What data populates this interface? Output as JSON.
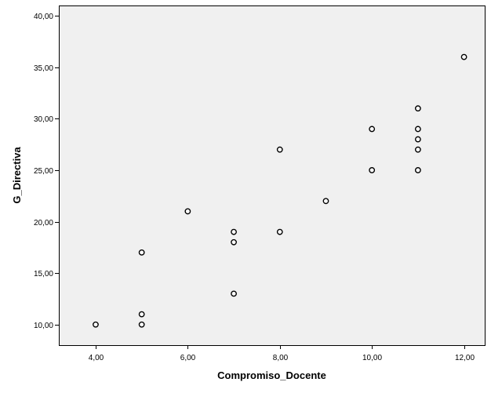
{
  "chart_data": {
    "type": "scatter",
    "title": "",
    "xlabel": "Compromiso_Docente",
    "ylabel": "G_Directiva",
    "xlim": [
      3.2,
      12.45
    ],
    "ylim": [
      8.0,
      41.0
    ],
    "x_ticks": [
      4,
      6,
      8,
      10,
      12
    ],
    "x_tick_labels": [
      "4,00",
      "6,00",
      "8,00",
      "10,00",
      "12,00"
    ],
    "y_ticks": [
      10,
      15,
      20,
      25,
      30,
      35,
      40
    ],
    "y_tick_labels": [
      "10,00",
      "15,00",
      "20,00",
      "25,00",
      "30,00",
      "35,00",
      "40,00"
    ],
    "grid": false,
    "legend": "none",
    "colors": {
      "plot_background": "#f0f0f0",
      "marker_stroke": "#000000",
      "marker_fill": "#ffffff"
    },
    "points": [
      {
        "x": 4,
        "y": 10
      },
      {
        "x": 5,
        "y": 10
      },
      {
        "x": 5,
        "y": 11
      },
      {
        "x": 5,
        "y": 17
      },
      {
        "x": 6,
        "y": 21
      },
      {
        "x": 7,
        "y": 13
      },
      {
        "x": 7,
        "y": 18
      },
      {
        "x": 7,
        "y": 19
      },
      {
        "x": 8,
        "y": 19
      },
      {
        "x": 8,
        "y": 27
      },
      {
        "x": 9,
        "y": 22
      },
      {
        "x": 10,
        "y": 25
      },
      {
        "x": 10,
        "y": 29
      },
      {
        "x": 11,
        "y": 25
      },
      {
        "x": 11,
        "y": 27
      },
      {
        "x": 11,
        "y": 28
      },
      {
        "x": 11,
        "y": 29
      },
      {
        "x": 11,
        "y": 31
      },
      {
        "x": 12,
        "y": 36
      }
    ]
  }
}
